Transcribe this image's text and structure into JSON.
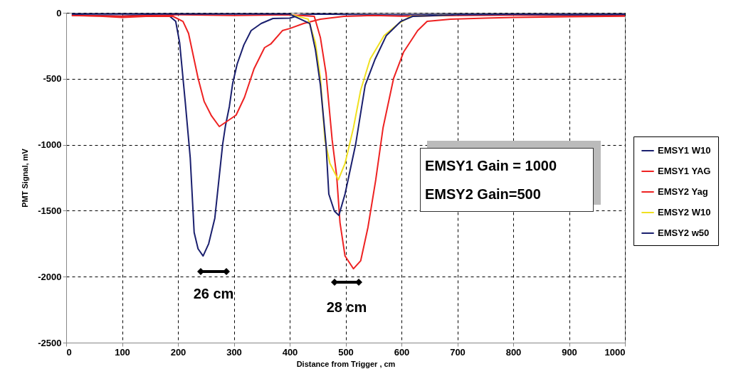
{
  "chart_data": {
    "type": "line",
    "xlabel": "Distance from Trigger , cm",
    "ylabel": "PMT Signal, mV",
    "xlim": [
      0,
      1000
    ],
    "xticks": [
      0,
      100,
      200,
      300,
      400,
      500,
      600,
      700,
      800,
      900,
      1000
    ],
    "ylim": [
      -2500,
      0
    ],
    "yticks": [
      -2500,
      -2000,
      -1500,
      -1000,
      -500,
      0
    ],
    "grid": true,
    "legend": "right",
    "marker": "none",
    "line_style": "solid",
    "series": [
      {
        "name": "EMSY1 W10",
        "color": "#1a1f6e",
        "x": [
          10,
          50,
          100,
          150,
          185,
          196,
          203,
          213,
          222,
          229,
          236,
          245,
          255,
          266,
          280,
          285,
          292,
          298,
          306,
          318,
          331,
          349,
          370,
          400,
          420,
          450,
          500,
          600,
          700,
          800,
          900,
          1000
        ],
        "values": [
          -15,
          -20,
          -25,
          -15,
          -25,
          -65,
          -226,
          -673,
          -1100,
          -1665,
          -1789,
          -1843,
          -1750,
          -1557,
          -997,
          -857,
          -711,
          -533,
          -388,
          -243,
          -135,
          -81,
          -43,
          -40,
          -15,
          -10,
          -12,
          -15,
          -12,
          -12,
          -12,
          -12
        ]
      },
      {
        "name": "EMSY1 YAG",
        "color": "#ee2222",
        "x": [
          10,
          60,
          100,
          150,
          191,
          209,
          219,
          236,
          247,
          260,
          274,
          289,
          304,
          319,
          336,
          355,
          366,
          387,
          400,
          425,
          455,
          497,
          550,
          600,
          700,
          800,
          900,
          1000
        ],
        "values": [
          -20,
          -25,
          -35,
          -25,
          -27,
          -65,
          -156,
          -496,
          -673,
          -781,
          -862,
          -819,
          -776,
          -641,
          -426,
          -264,
          -237,
          -135,
          -119,
          -81,
          -48,
          -27,
          -20,
          -25,
          -20,
          -18,
          -20,
          -20
        ]
      },
      {
        "name": "EMSY2 Yag",
        "color": "#ee2222",
        "x": [
          10,
          100,
          200,
          300,
          400,
          444,
          455,
          465,
          476,
          484,
          490,
          499,
          514,
          527,
          540,
          554,
          567,
          586,
          604,
          629,
          646,
          688,
          750,
          800,
          900,
          1000
        ],
        "values": [
          -20,
          -25,
          -15,
          -20,
          -15,
          -27,
          -189,
          -458,
          -964,
          -1234,
          -1590,
          -1843,
          -1940,
          -1880,
          -1627,
          -1266,
          -873,
          -496,
          -296,
          -135,
          -65,
          -48,
          -40,
          -35,
          -30,
          -25
        ]
      },
      {
        "name": "EMSY2 W10",
        "color": "#f0e020",
        "x": [
          400,
          433,
          446,
          455,
          463,
          472,
          487,
          499,
          514,
          527,
          544,
          569,
          595,
          616,
          700
        ],
        "values": [
          -10,
          -48,
          -226,
          -496,
          -964,
          -1142,
          -1266,
          -1142,
          -873,
          -587,
          -350,
          -172,
          -81,
          -27,
          -15
        ]
      },
      {
        "name": "EMSY2 w50",
        "color": "#1a1f6e",
        "x": [
          10,
          100,
          200,
          300,
          400,
          436,
          446,
          455,
          465,
          470,
          480,
          488,
          499,
          518,
          535,
          553,
          573,
          599,
          620,
          700,
          800,
          900,
          1000
        ],
        "values": [
          -10,
          -10,
          -10,
          -10,
          -10,
          -81,
          -280,
          -550,
          -997,
          -1374,
          -1503,
          -1536,
          -1374,
          -997,
          -550,
          -350,
          -172,
          -65,
          -27,
          -15,
          -12,
          -15,
          -12
        ]
      }
    ],
    "annotations": [
      "26 cm",
      "28 cm",
      "EMSY1 Gain = 1000",
      "EMSY2 Gain=500"
    ]
  }
}
